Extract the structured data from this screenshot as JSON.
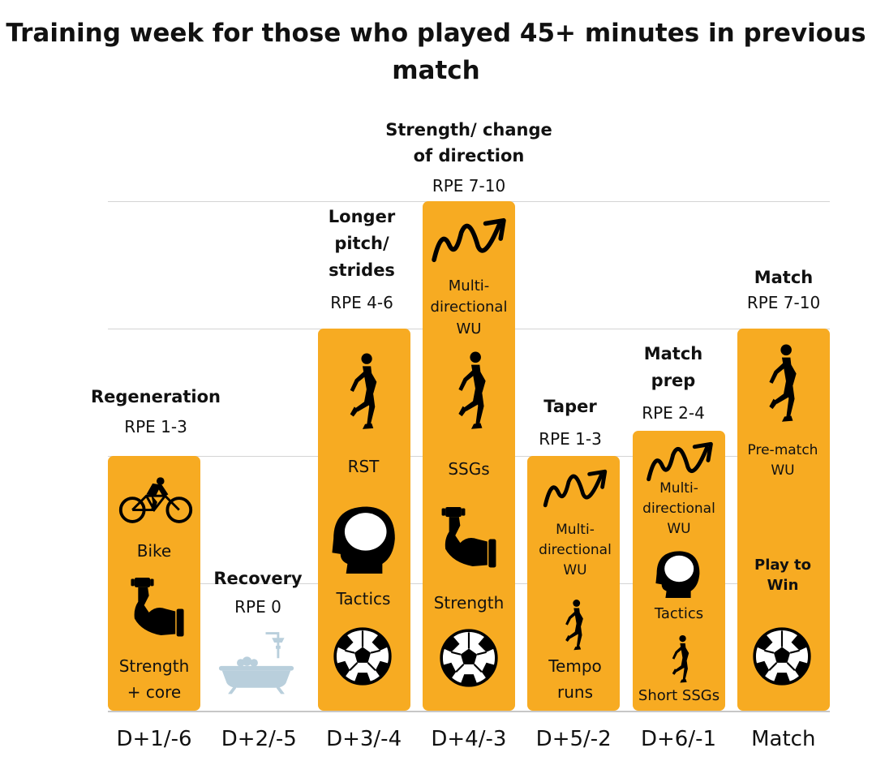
{
  "title": "Training week for those who played 45+ minutes in previous match",
  "colors": {
    "bar": "#f7ab22",
    "icon": "#000000",
    "bath": "#b9cfdc",
    "grid": "#d4d4d4"
  },
  "chart_data": {
    "type": "bar",
    "title": "Training week for those who played 45+ minutes in previous match",
    "categories": [
      "D+1/-6",
      "D+2/-5",
      "D+3/-4",
      "D+4/-3",
      "D+5/-2",
      "D+6/-1",
      "Match"
    ],
    "series": [
      {
        "values": [
          2,
          0,
          3,
          4,
          2,
          2.2,
          3
        ]
      }
    ],
    "ylim": [
      0,
      4
    ],
    "grid": true,
    "sessions": [
      {
        "heading": "Regeneration",
        "rpe": "RPE 1-3",
        "content": [
          "Bike",
          "Strength + core"
        ],
        "icons": [
          "cyclist-icon",
          "flexed-arm-icon"
        ]
      },
      {
        "heading": "Recovery",
        "rpe": "RPE 0",
        "content": [],
        "icons": [
          "bathtub-icon"
        ]
      },
      {
        "heading": "Longer pitch/ strides",
        "rpe": "RPE 4-6",
        "content": [
          "RST",
          "Tactics"
        ],
        "icons": [
          "runner-icon",
          "head-icon",
          "soccer-ball-icon"
        ]
      },
      {
        "heading": "Strength/ change of direction",
        "rpe": "RPE 7-10",
        "content": [
          "Multi-directional WU",
          "SSGs",
          "Strength"
        ],
        "icons": [
          "zigzag-arrow-icon",
          "runner-icon",
          "flexed-arm-icon",
          "soccer-ball-icon"
        ]
      },
      {
        "heading": "Taper",
        "rpe": "RPE 1-3",
        "content": [
          "Multi-directional WU",
          "Tempo runs"
        ],
        "icons": [
          "zigzag-arrow-icon",
          "runner-icon"
        ]
      },
      {
        "heading": "Match prep",
        "rpe": "RPE 2-4",
        "content": [
          "Multi-directional WU",
          "Tactics",
          "Short SSGs"
        ],
        "icons": [
          "zigzag-arrow-icon",
          "head-icon",
          "runner-icon"
        ]
      },
      {
        "heading": "Match",
        "rpe": "RPE 7-10",
        "content": [
          "Pre-match WU",
          "Play to Win"
        ],
        "icons": [
          "runner-icon",
          "soccer-ball-icon"
        ]
      }
    ]
  },
  "text": {
    "c0": {
      "h": "Regeneration",
      "rpe": "RPE 1-3",
      "t1": "Bike",
      "t2a": "Strength",
      "t2b": "+ core"
    },
    "c1": {
      "h": "Recovery",
      "rpe": "RPE 0"
    },
    "c2": {
      "h1": "Longer",
      "h2": "pitch/",
      "h3": "strides",
      "rpe": "RPE 4-6",
      "t1": "RST",
      "t2": "Tactics"
    },
    "c3": {
      "h1": "Strength/ change",
      "h2": "of direction",
      "rpe": "RPE 7-10",
      "t1a": "Multi-",
      "t1b": "directional",
      "t1c": "WU",
      "t2": "SSGs",
      "t3": "Strength"
    },
    "c4": {
      "h": "Taper",
      "rpe": "RPE 1-3",
      "t1a": "Multi-",
      "t1b": "directional",
      "t1c": "WU",
      "t2a": "Tempo",
      "t2b": "runs"
    },
    "c5": {
      "h1": "Match",
      "h2": "prep",
      "rpe": "RPE 2-4",
      "t1a": "Multi-",
      "t1b": "directional",
      "t1c": "WU",
      "t2": "Tactics",
      "t3": "Short SSGs"
    },
    "c6": {
      "h": "Match",
      "rpe": "RPE 7-10",
      "t1a": "Pre-match",
      "t1b": "WU",
      "t2a": "Play to",
      "t2b": "Win"
    }
  }
}
